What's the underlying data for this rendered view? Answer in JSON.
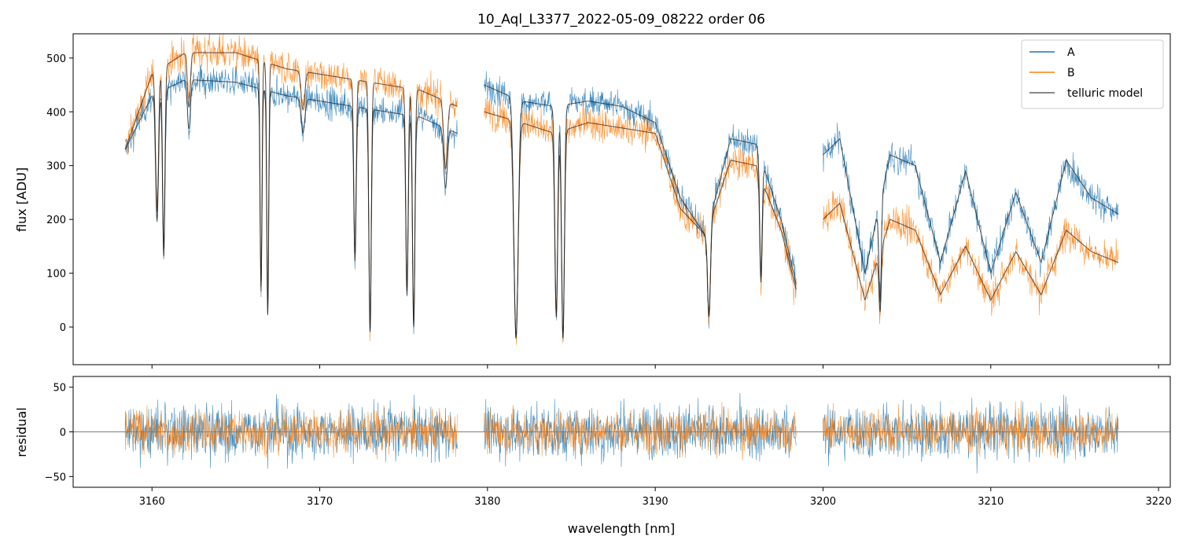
{
  "title": "10_Aql_L3377_2022-05-09_08222  order 06",
  "colors": {
    "A": "#1f77b4",
    "B": "#ff7f0e",
    "model": "#222222",
    "zero": "#555555"
  },
  "chart_data": [
    {
      "type": "line",
      "panel": "main",
      "title": "10_Aql_L3377_2022-05-09_08222  order 06",
      "xlabel": "",
      "ylabel": "flux [ADU]",
      "xlim": [
        3155.3,
        3220.7
      ],
      "ylim": [
        -70,
        545
      ],
      "xticks": [
        3160,
        3170,
        3180,
        3190,
        3200,
        3210,
        3220
      ],
      "yticks": [
        0,
        100,
        200,
        300,
        400,
        500
      ],
      "ytick_labels": [
        "0",
        "100",
        "200",
        "300",
        "400",
        "500"
      ],
      "legend": {
        "placement": "top-right",
        "entries": [
          "A",
          "B",
          "telluric model"
        ]
      },
      "grid": false,
      "segments": [
        [
          3158.4,
          3178.2
        ],
        [
          3179.8,
          3198.4
        ],
        [
          3200.0,
          3217.6
        ]
      ],
      "continuum_points": {
        "x": [
          3158.4,
          3160,
          3162,
          3165,
          3168,
          3172,
          3176,
          3178.2,
          3179.8,
          3182,
          3184,
          3186,
          3188,
          3190,
          3191.5,
          3193,
          3194.5,
          3196,
          3197.5,
          3198.4,
          3200,
          3201,
          3202.5,
          3204,
          3205.5,
          3207,
          3208.5,
          3210,
          3211.5,
          3213,
          3214.5,
          3216,
          3217.6
        ],
        "A": [
          330,
          430,
          460,
          455,
          430,
          410,
          390,
          360,
          450,
          420,
          410,
          420,
          410,
          380,
          240,
          170,
          350,
          340,
          200,
          80,
          320,
          350,
          100,
          320,
          300,
          120,
          290,
          100,
          250,
          120,
          310,
          240,
          210
        ],
        "B": [
          330,
          470,
          510,
          510,
          480,
          460,
          440,
          410,
          400,
          380,
          360,
          380,
          370,
          360,
          220,
          170,
          310,
          300,
          180,
          70,
          200,
          230,
          50,
          200,
          180,
          60,
          150,
          50,
          140,
          60,
          180,
          140,
          120
        ]
      },
      "absorption_lines": [
        {
          "x": 3160.3,
          "depth": 0.55,
          "width": 0.12
        },
        {
          "x": 3160.7,
          "depth": 0.7,
          "width": 0.1
        },
        {
          "x": 3162.2,
          "depth": 0.2,
          "width": 0.12
        },
        {
          "x": 3166.5,
          "depth": 0.85,
          "width": 0.08
        },
        {
          "x": 3166.9,
          "depth": 0.95,
          "width": 0.08
        },
        {
          "x": 3169.0,
          "depth": 0.15,
          "width": 0.15
        },
        {
          "x": 3172.1,
          "depth": 0.7,
          "width": 0.1
        },
        {
          "x": 3173.0,
          "depth": 1.02,
          "width": 0.1
        },
        {
          "x": 3175.2,
          "depth": 0.85,
          "width": 0.1
        },
        {
          "x": 3175.6,
          "depth": 1.0,
          "width": 0.1
        },
        {
          "x": 3177.5,
          "depth": 0.3,
          "width": 0.15
        },
        {
          "x": 3181.7,
          "depth": 1.05,
          "width": 0.18
        },
        {
          "x": 3184.1,
          "depth": 0.95,
          "width": 0.12
        },
        {
          "x": 3184.5,
          "depth": 1.05,
          "width": 0.12
        },
        {
          "x": 3193.2,
          "depth": 0.9,
          "width": 0.12
        },
        {
          "x": 3196.3,
          "depth": 0.7,
          "width": 0.1
        },
        {
          "x": 3203.4,
          "depth": 0.8,
          "width": 0.1
        }
      ]
    },
    {
      "type": "line",
      "panel": "residual",
      "xlabel": "wavelength [nm]",
      "ylabel": "residual",
      "xlim": [
        3155.3,
        3220.7
      ],
      "ylim": [
        -62,
        62
      ],
      "xticks": [
        3160,
        3170,
        3180,
        3190,
        3200,
        3210,
        3220
      ],
      "xtick_labels": [
        "3160",
        "3170",
        "3180",
        "3190",
        "3200",
        "3210",
        "3220"
      ],
      "yticks": [
        -50,
        0,
        50
      ],
      "ytick_labels": [
        "−50",
        "0",
        "50"
      ],
      "segments": [
        [
          3158.4,
          3178.2
        ],
        [
          3179.8,
          3198.4
        ],
        [
          3200.0,
          3217.6
        ]
      ],
      "noise_amplitude": {
        "A": 26,
        "B": 20
      },
      "zero_line": 0
    }
  ]
}
